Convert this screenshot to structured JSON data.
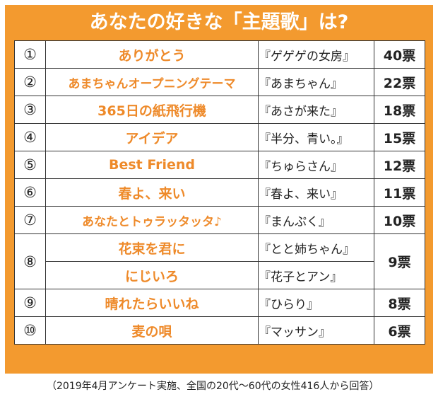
{
  "title": "あなたの好きな「主題歌」は?",
  "rows": [
    {
      "rank": "①",
      "song": "ありがとう",
      "drama": "『ゲゲゲの女房』",
      "votes": "40票"
    },
    {
      "rank": "②",
      "song": "あまちゃんオープニングテーマ",
      "drama": "『あまちゃん』",
      "votes": "22票"
    },
    {
      "rank": "③",
      "song": "365日の紙飛行機",
      "drama": "『あさが来た』",
      "votes": "18票"
    },
    {
      "rank": "④",
      "song": "アイデア",
      "drama": "『半分、青い。』",
      "votes": "15票"
    },
    {
      "rank": "⑤",
      "song": "Best Friend",
      "drama": "『ちゅらさん』",
      "votes": "12票"
    },
    {
      "rank": "⑥",
      "song": "春よ、来い",
      "drama": "『春よ、来い』",
      "votes": "11票"
    },
    {
      "rank": "⑦",
      "song": "あなたとトゥラッタッタ♪",
      "drama": "『まんぷく』",
      "votes": "10票"
    },
    {
      "rank": "⑧",
      "song": "花束を君に",
      "drama": "『とと姉ちゃん』",
      "votes": "9票",
      "song2": "にじいろ",
      "drama2": "『花子とアン』"
    },
    {
      "rank": "⑨",
      "song": "晴れたらいいね",
      "drama": "『ひらり』",
      "votes": "8票"
    },
    {
      "rank": "⑩",
      "song": "麦の唄",
      "drama": "『マッサン』",
      "votes": "6票"
    }
  ],
  "footnote": "（2019年4月アンケート実施、全国の20代〜60代の女性416人から回答）",
  "colors": {
    "accent": "#f39a2f",
    "song_text": "#ee8a2a"
  }
}
